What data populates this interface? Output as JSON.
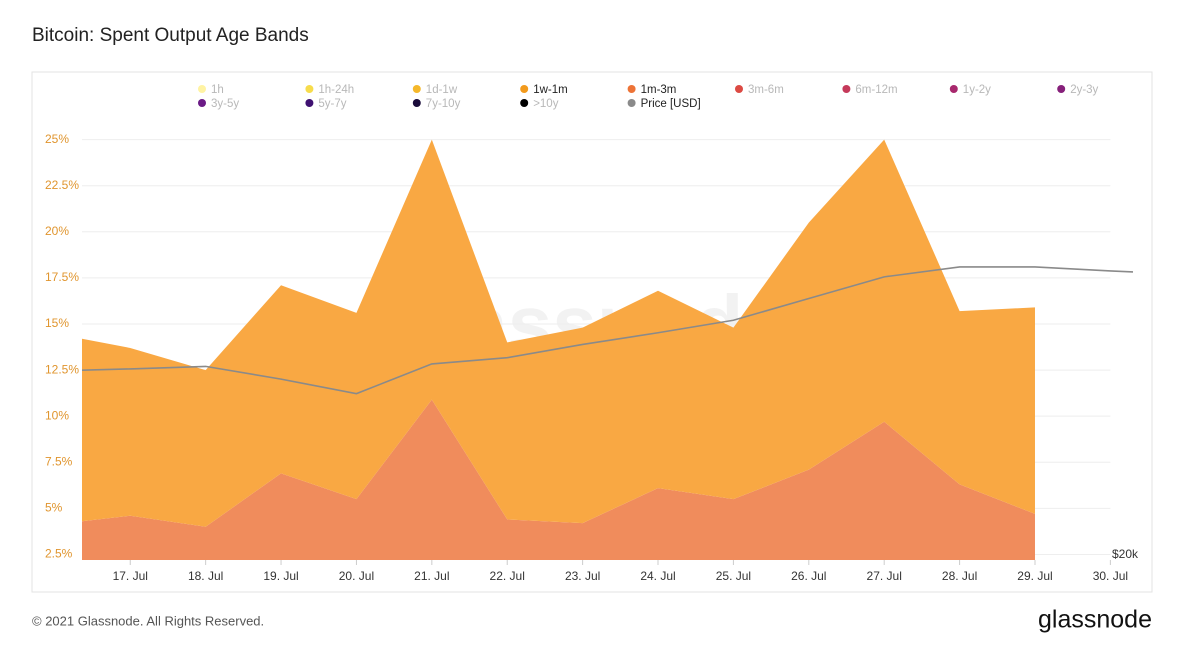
{
  "title": "Bitcoin: Spent Output Age Bands",
  "footer": "© 2021 Glassnode. All Rights Reserved.",
  "logo": "glassnode",
  "chart_data": {
    "type": "stacked_area",
    "watermark": "glassnode",
    "x": [
      16.36,
      17,
      18,
      19,
      20,
      21,
      22,
      23,
      24,
      25,
      26,
      27,
      28,
      29
    ],
    "xlim": [
      16.36,
      30.3
    ],
    "xticks": [
      {
        "value": 17,
        "label": "17. Jul"
      },
      {
        "value": 18,
        "label": "18. Jul"
      },
      {
        "value": 19,
        "label": "19. Jul"
      },
      {
        "value": 20,
        "label": "20. Jul"
      },
      {
        "value": 21,
        "label": "21. Jul"
      },
      {
        "value": 22,
        "label": "22. Jul"
      },
      {
        "value": 23,
        "label": "23. Jul"
      },
      {
        "value": 24,
        "label": "24. Jul"
      },
      {
        "value": 25,
        "label": "25. Jul"
      },
      {
        "value": 26,
        "label": "26. Jul"
      },
      {
        "value": 27,
        "label": "27. Jul"
      },
      {
        "value": 28,
        "label": "28. Jul"
      },
      {
        "value": 29,
        "label": "29. Jul"
      },
      {
        "value": 30,
        "label": "30. Jul"
      }
    ],
    "ylim": [
      2.2,
      25.9
    ],
    "yticks": [
      {
        "value": 2.5,
        "label": "2.5%"
      },
      {
        "value": 5,
        "label": "5%"
      },
      {
        "value": 7.5,
        "label": "7.5%"
      },
      {
        "value": 10,
        "label": "10%"
      },
      {
        "value": 12.5,
        "label": "12.5%"
      },
      {
        "value": 15,
        "label": "15%"
      },
      {
        "value": 17.5,
        "label": "17.5%"
      },
      {
        "value": 20,
        "label": "20%"
      },
      {
        "value": 22.5,
        "label": "22.5%"
      },
      {
        "value": 25,
        "label": "25%"
      }
    ],
    "y2lim": [
      19750,
      58700
    ],
    "y2log": true,
    "y2ticks": [
      {
        "value": 20000,
        "label": "$20k"
      }
    ],
    "grid": true,
    "series": [
      {
        "name": "1h",
        "color": "#fff3a3",
        "visible": false
      },
      {
        "name": "1h-24h",
        "color": "#f7dc4c",
        "visible": false
      },
      {
        "name": "1d-1w",
        "color": "#f5b82a",
        "visible": false
      },
      {
        "name": "1w-1m",
        "color": "#f29a1c",
        "fill": "#f9a843",
        "visible": true,
        "stack_order": 1,
        "values": [
          9.9,
          9.1,
          8.5,
          10.2,
          10.1,
          14.1,
          9.6,
          10.6,
          10.7,
          9.3,
          13.4,
          15.3,
          9.4,
          11.2
        ]
      },
      {
        "name": "1m-3m",
        "color": "#ed7336",
        "fill": "#f08c5c",
        "visible": true,
        "stack_order": 0,
        "values": [
          4.3,
          4.6,
          4.0,
          6.9,
          5.5,
          10.9,
          4.4,
          4.2,
          6.1,
          5.5,
          7.1,
          9.7,
          6.3,
          4.7
        ]
      },
      {
        "name": "3m-6m",
        "color": "#dc4a43",
        "visible": false
      },
      {
        "name": "6m-12m",
        "color": "#c5395a",
        "visible": false
      },
      {
        "name": "1y-2y",
        "color": "#a8286d",
        "visible": false
      },
      {
        "name": "2y-3y",
        "color": "#86207a",
        "visible": false
      },
      {
        "name": "3y-5y",
        "color": "#6b1b86",
        "visible": false
      },
      {
        "name": "5y-7y",
        "color": "#3f1171",
        "visible": false
      },
      {
        "name": "7y-10y",
        "color": "#1a0c3a",
        "visible": false
      },
      {
        "name": ">10y",
        "color": "#000000",
        "visible": false
      },
      {
        "name": "Price [USD]",
        "color": "#8a8a8a",
        "visible": true,
        "kind": "line",
        "axis": "y2",
        "x": [
          16.36,
          17,
          18,
          19,
          20,
          21,
          22,
          23,
          24,
          25,
          26,
          27,
          28,
          29,
          30,
          30.3
        ],
        "values": [
          31700,
          31800,
          32000,
          31000,
          29900,
          32200,
          32700,
          33800,
          34800,
          35900,
          37900,
          40000,
          41000,
          41000,
          40600,
          40500
        ]
      }
    ]
  }
}
